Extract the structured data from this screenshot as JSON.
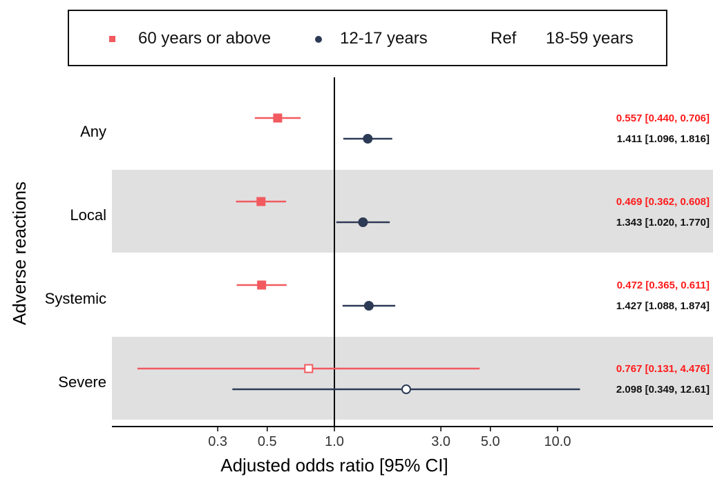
{
  "colors": {
    "older": "#F25A5F",
    "younger": "#2D3A55",
    "axis": "#000000",
    "band": "#E0E0E0"
  },
  "legend": {
    "items": [
      {
        "label": "60 years or above",
        "marker": "square",
        "color": "#F25A5F"
      },
      {
        "label": "12-17 years",
        "marker": "circle",
        "color": "#2D3A55"
      }
    ],
    "ref_tag": "Ref",
    "ref_label": "18-59 years"
  },
  "chart_data": {
    "type": "forest",
    "ylabel": "Adverse reactions",
    "xlabel": "Adjusted odds ratio [95% CI]",
    "x_scale": "log",
    "xlim": [
      0.125,
      20
    ],
    "xticks": [
      0.3,
      0.5,
      1.0,
      3.0,
      5.0,
      10.0
    ],
    "xtick_labels": [
      "0.3",
      "0.5",
      "1.0",
      "3.0",
      "5.0",
      "10.0"
    ],
    "reference_line": 1.0,
    "categories": [
      "Any",
      "Local",
      "Systemic",
      "Severe"
    ],
    "shaded_rows": [
      "Local",
      "Severe"
    ],
    "series": [
      {
        "name": "60 years or above",
        "marker": "square",
        "color": "#F25A5F",
        "points": [
          {
            "category": "Any",
            "or": 0.557,
            "lo": 0.44,
            "hi": 0.706,
            "label": "0.557 [0.440, 0.706]",
            "hollow": false
          },
          {
            "category": "Local",
            "or": 0.469,
            "lo": 0.362,
            "hi": 0.608,
            "label": "0.469 [0.362, 0.608]",
            "hollow": false
          },
          {
            "category": "Systemic",
            "or": 0.472,
            "lo": 0.365,
            "hi": 0.611,
            "label": "0.472 [0.365, 0.611]",
            "hollow": false
          },
          {
            "category": "Severe",
            "or": 0.767,
            "lo": 0.131,
            "hi": 4.476,
            "label": "0.767 [0.131, 4.476]",
            "hollow": true
          }
        ]
      },
      {
        "name": "12-17 years",
        "marker": "circle",
        "color": "#2D3A55",
        "points": [
          {
            "category": "Any",
            "or": 1.411,
            "lo": 1.096,
            "hi": 1.816,
            "label": "1.411 [1.096, 1.816]",
            "hollow": false
          },
          {
            "category": "Local",
            "or": 1.343,
            "lo": 1.02,
            "hi": 1.77,
            "label": "1.343 [1.020, 1.770]",
            "hollow": false
          },
          {
            "category": "Systemic",
            "or": 1.427,
            "lo": 1.088,
            "hi": 1.874,
            "label": "1.427 [1.088, 1.874]",
            "hollow": false
          },
          {
            "category": "Severe",
            "or": 2.098,
            "lo": 0.349,
            "hi": 12.61,
            "label": "2.098 [0.349, 12.61]",
            "hollow": true
          }
        ]
      }
    ]
  }
}
